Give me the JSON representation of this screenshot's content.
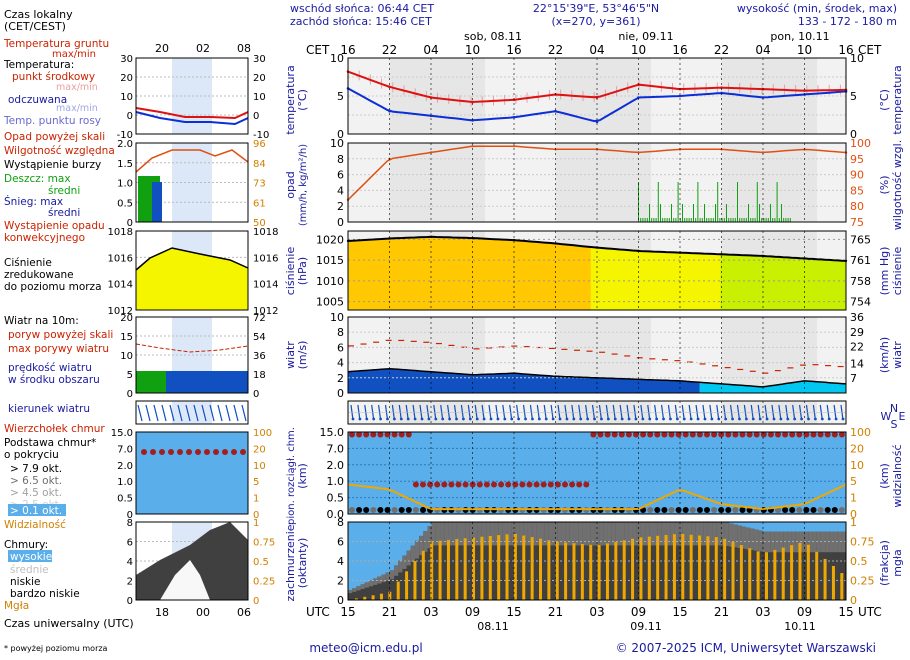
{
  "header": {
    "sunrise": "wschód słońca: 06:44 CET",
    "sunset": "zachód słońca: 15:46 CET",
    "coords": "22°15'39\"E, 53°46'5\"N",
    "grid": "(x=270, y=361)",
    "altitude_label": "wysokość (min, środek, max)",
    "altitude_values": "133 - 172 - 180 m"
  },
  "colors": {
    "axis_blue": "#1a1aa0",
    "label_red": "#cc2200",
    "panel_grey": "#e6e6e6",
    "panel_light": "#f2f2f2",
    "sky_blue": "#5aaeea",
    "pressure_yellow": "#f5f500",
    "pressure_orange": "#ffc800",
    "pressure_lime": "#c8f000",
    "wind_blue": "#1050c0",
    "wind_cyan": "#00c8f0",
    "cloud_dark": "#404040",
    "cloud_mid": "#707070",
    "precip_bar": "#f0a800",
    "temp_red": "#dd1111",
    "feel_blue": "#0b2ed6",
    "humidity_orange": "#e05010"
  },
  "legend": {
    "local_time": "Czas lokalny",
    "local_time_sub": "(CET/CEST)",
    "soil_temp": "Temperatura gruntu",
    "soil_temp_sub": "max/min",
    "temperature": "Temperatura:",
    "temp_mid": "punkt środkowy",
    "temp_maxmin": "max/min",
    "feels": "odczuwana",
    "feels_maxmin": "max/min",
    "dewpoint": "Temp. punktu rosy",
    "precip_above": "Opad powyżej skali",
    "humidity": "Wilgotność względna",
    "storm": "Wystąpienie burzy",
    "rain_max": "Deszcz: max",
    "rain_mean": "średni",
    "snow_max": "Śnieg:   max",
    "snow_mean": "średni",
    "conv_precip_1": "Wystąpienie opadu",
    "conv_precip_2": "konwekcyjnego",
    "pressure_1": "Ciśnienie",
    "pressure_2": "zredukowane",
    "pressure_3": "do poziomu morza",
    "wind_at": "Wiatr na 10m:",
    "gust_above": "poryw powyżej skali",
    "gust_max": "max porywy wiatru",
    "wind_speed_1": "prędkość wiatru",
    "wind_speed_2": "w środku obszaru",
    "wind_dir": "kierunek wiatru",
    "cloud_top": "Wierzchołek chmur",
    "cloud_base_1": "Podstawa chmur*",
    "cloud_base_2": "o pokryciu",
    "okt_79": "> 7.9 okt.",
    "okt_65": "> 6.5 okt.",
    "okt_45": "> 4.5 okt.",
    "okt_25": "> 2.5 okt.",
    "okt_01": "> 0.1 okt.",
    "visibility": "Widzialność",
    "clouds": "Chmury:",
    "cl_high": "wysokie",
    "cl_mid": "średnie",
    "cl_low": "niskie",
    "cl_vlow": "bardzo niskie",
    "fog": "Mgła",
    "utc_time": "Czas uniwersalny (UTC)",
    "footnote": "* powyżej poziomu morza"
  },
  "mini_axis": {
    "top_hours": [
      "20",
      "02",
      "08"
    ],
    "bottom_hours": [
      "18",
      "00",
      "06"
    ]
  },
  "main_axis": {
    "cet_label": "CET",
    "utc_label": "UTC",
    "cet_hours": [
      "16",
      "22",
      "04",
      "10",
      "16",
      "22",
      "04",
      "10",
      "16",
      "22",
      "04",
      "10",
      "16"
    ],
    "utc_hours": [
      "15",
      "21",
      "03",
      "09",
      "15",
      "21",
      "03",
      "09",
      "15",
      "21",
      "03",
      "09",
      "15"
    ],
    "top_days": [
      "sob, 08.11",
      "nie, 09.11",
      "pon, 10.11"
    ],
    "bottom_days": [
      "08.11",
      "09.11",
      "10.11"
    ]
  },
  "panel_labels": {
    "temperature": "temperatura",
    "temperature_unit": "(°C)",
    "precip": "opad",
    "precip_unit": "(mm/h, kg/m²/h)",
    "humidity": "wilgotność wzgl.",
    "humidity_unit": "(%)",
    "pressure": "ciśnienie",
    "pressure_unit_l": "(hPa)",
    "pressure_unit_r": "(mm Hg)",
    "wind": "wiatr",
    "wind_unit_l": "(m/s)",
    "wind_unit_r": "(km/h)",
    "cloud_base": "pion. rozciągł. chm.",
    "cloud_base_unit": "(km)",
    "visibility": "widzialność",
    "visibility_unit": "(km)",
    "cover": "zachmurzenie",
    "cover_unit": "(oktanty)",
    "fog": "mgła",
    "fog_unit": "(frakcja)",
    "compass_n": "N",
    "compass_w": "W",
    "compass_e": "E",
    "compass_s": "S"
  },
  "footer": {
    "email": "meteo@icm.edu.pl",
    "copyright": "© 2007-2025 ICM, Uniwersytet Warszawski"
  },
  "chart_data": [
    {
      "type": "line",
      "title": "temperatura",
      "ylabel": "(°C)",
      "ylim": [
        0,
        10
      ],
      "yticks": [
        0,
        5,
        10
      ],
      "x_hours_utc_from_start": [
        0,
        6,
        12,
        18,
        24,
        30,
        36,
        42,
        48,
        54,
        60,
        66,
        72
      ],
      "series": [
        {
          "name": "temperatura",
          "values": [
            8.2,
            6.2,
            4.8,
            4.2,
            4.5,
            5.2,
            4.8,
            6.5,
            5.9,
            6.1,
            5.9,
            5.7,
            5.8
          ]
        },
        {
          "name": "odczuwana",
          "values": [
            6.0,
            3.0,
            2.4,
            1.8,
            2.2,
            3.0,
            1.6,
            4.8,
            5.0,
            5.4,
            4.8,
            5.2,
            5.6
          ]
        }
      ]
    },
    {
      "type": "line",
      "title": "wilgotność wzgl.",
      "ylabel": "(%)",
      "ylim": [
        75,
        100
      ],
      "series": [
        {
          "name": "wilgotność wzgl.",
          "values": [
            82,
            95,
            97,
            99,
            99,
            98,
            98,
            97,
            98,
            98,
            97,
            98,
            97
          ]
        }
      ]
    },
    {
      "type": "area",
      "title": "ciśnienie",
      "ylabel": "(hPa)",
      "ylim": [
        1005,
        1020
      ],
      "yticks_left": [
        1005,
        1010,
        1015,
        1020
      ],
      "yticks_right": [
        754,
        758,
        761,
        765
      ],
      "series": [
        {
          "name": "ciśnienie",
          "values": [
            1019.6,
            1020.2,
            1020.6,
            1020.3,
            1019.8,
            1019.0,
            1018.0,
            1017.2,
            1016.8,
            1016.4,
            1016.0,
            1015.4,
            1014.8
          ]
        }
      ]
    },
    {
      "type": "area",
      "title": "wiatr",
      "ylabel": "(m/s)",
      "ylim": [
        0,
        10
      ],
      "yticks_left": [
        0,
        2,
        4,
        6,
        8,
        10
      ],
      "yticks_right": [
        7,
        14,
        22,
        29,
        36
      ],
      "series": [
        {
          "name": "prędkość wiatru",
          "values": [
            2.8,
            3.2,
            2.8,
            2.4,
            2.6,
            2.2,
            2.0,
            1.8,
            1.6,
            1.2,
            0.8,
            1.6,
            1.2
          ]
        },
        {
          "name": "max porywy wiatru",
          "values": [
            6.2,
            7.0,
            6.6,
            5.8,
            6.2,
            5.8,
            5.4,
            4.6,
            4.2,
            3.4,
            2.6,
            3.8,
            3.4
          ]
        }
      ]
    },
    {
      "type": "line",
      "title": "pion. rozciągł. chm.",
      "ylabel": "(km)",
      "ylim": [
        0,
        15
      ],
      "yticks_left": [
        0,
        0.5,
        1.0,
        2.0,
        7.0,
        15.0
      ],
      "yticks_right": [
        0,
        1,
        5,
        10,
        20,
        100
      ],
      "series": [
        {
          "name": "widzialność",
          "values": [
            6,
            5,
            1,
            1,
            1,
            1,
            1,
            1,
            5,
            2,
            1,
            2,
            6
          ]
        }
      ]
    },
    {
      "type": "area",
      "title": "zachmurzenie",
      "ylabel": "(oktanty)",
      "ylim": [
        0,
        8
      ],
      "yticks_left": [
        0,
        2,
        4,
        6,
        8
      ],
      "yticks_right": [
        0,
        0.25,
        0.5,
        0.75,
        1
      ],
      "series": [
        {
          "name": "zachmurzenie",
          "values": [
            1,
            3,
            8,
            8,
            8,
            8,
            8,
            8,
            8,
            8,
            7,
            7,
            7
          ]
        },
        {
          "name": "mgła",
          "values": [
            0,
            0.1,
            0.75,
            0.8,
            0.85,
            0.75,
            0.7,
            0.8,
            0.85,
            0.8,
            0.6,
            0.75,
            0.3
          ]
        }
      ]
    }
  ]
}
